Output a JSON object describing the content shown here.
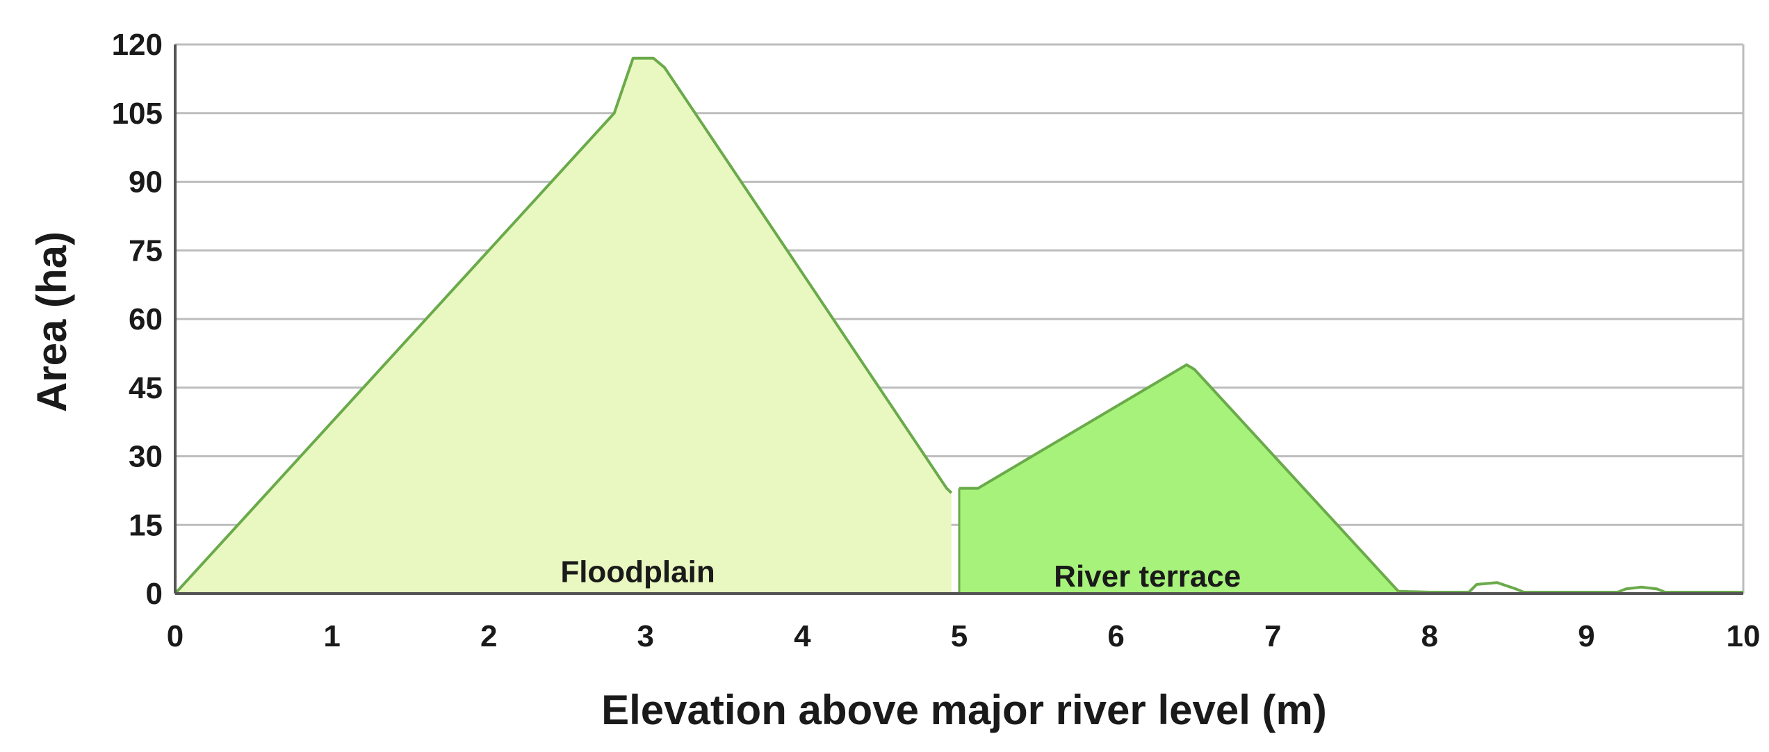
{
  "chart_data": {
    "type": "area",
    "xlabel": "Elevation above major river level (m)",
    "ylabel": "Area (ha)",
    "xlim": [
      0,
      10
    ],
    "ylim": [
      0,
      120
    ],
    "x_ticks": [
      "0",
      "1",
      "2",
      "3",
      "4",
      "5",
      "6",
      "7",
      "8",
      "9",
      "10"
    ],
    "y_ticks": [
      "0",
      "15",
      "30",
      "45",
      "60",
      "75",
      "90",
      "105",
      "120"
    ],
    "grid": "horizontal",
    "series": [
      {
        "name": "Floodplain",
        "color": "#e8f8c0",
        "points": [
          [
            0,
            0
          ],
          [
            2.8,
            105
          ],
          [
            2.92,
            117
          ],
          [
            3.05,
            117
          ],
          [
            3.12,
            115
          ],
          [
            4.92,
            23
          ],
          [
            4.95,
            22
          ]
        ]
      },
      {
        "name": "River terrace",
        "color": "#a6f27a",
        "points": [
          [
            5.0,
            23
          ],
          [
            5.12,
            23
          ],
          [
            6.45,
            50
          ],
          [
            6.5,
            49
          ],
          [
            7.8,
            0.5
          ]
        ]
      },
      {
        "name": "",
        "color": "#ffffff",
        "points": [
          [
            7.8,
            0.5
          ],
          [
            8.0,
            0.3
          ],
          [
            8.25,
            0.3
          ],
          [
            8.3,
            2.0
          ],
          [
            8.43,
            2.4
          ],
          [
            8.55,
            1.0
          ],
          [
            8.6,
            0.3
          ],
          [
            9.2,
            0.3
          ],
          [
            9.25,
            1.0
          ],
          [
            9.35,
            1.4
          ],
          [
            9.45,
            1.0
          ],
          [
            9.5,
            0.3
          ],
          [
            10,
            0.3
          ]
        ]
      }
    ],
    "line_color": "#6aaa4a"
  }
}
